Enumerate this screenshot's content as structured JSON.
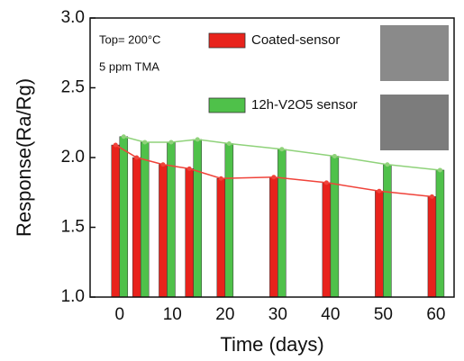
{
  "chart_data": {
    "type": "bar",
    "x": [
      0,
      4,
      9,
      14,
      20,
      30,
      40,
      50,
      60
    ],
    "series": [
      {
        "name": "Coated-sensor",
        "color": "#e8231c",
        "line_color": "#f0433a",
        "values": [
          2.09,
          2.0,
          1.95,
          1.92,
          1.85,
          1.86,
          1.82,
          1.76,
          1.72
        ]
      },
      {
        "name": "12h-V2O5 sensor",
        "color": "#4fc14a",
        "line_color": "#8fd27a",
        "values": [
          2.15,
          2.11,
          2.11,
          2.13,
          2.1,
          2.06,
          2.01,
          1.95,
          1.91
        ]
      }
    ],
    "xlabel": "Time (days)",
    "ylabel": "Response(Ra/Rg)",
    "annotations": [
      "Top= 200°C",
      "5 ppm TMA"
    ],
    "xlim": [
      -5.6,
      63.6
    ],
    "ylim": [
      1.0,
      3.0
    ],
    "xticks": [
      0,
      10,
      20,
      30,
      40,
      50,
      60
    ],
    "yticks": [
      {
        "value": 1.0,
        "label": "1.0"
      },
      {
        "value": 1.5,
        "label": "1.5"
      },
      {
        "value": 2.0,
        "label": "2.0"
      },
      {
        "value": 2.5,
        "label": "2.5"
      },
      {
        "value": 3.0,
        "label": "3.0"
      }
    ]
  }
}
